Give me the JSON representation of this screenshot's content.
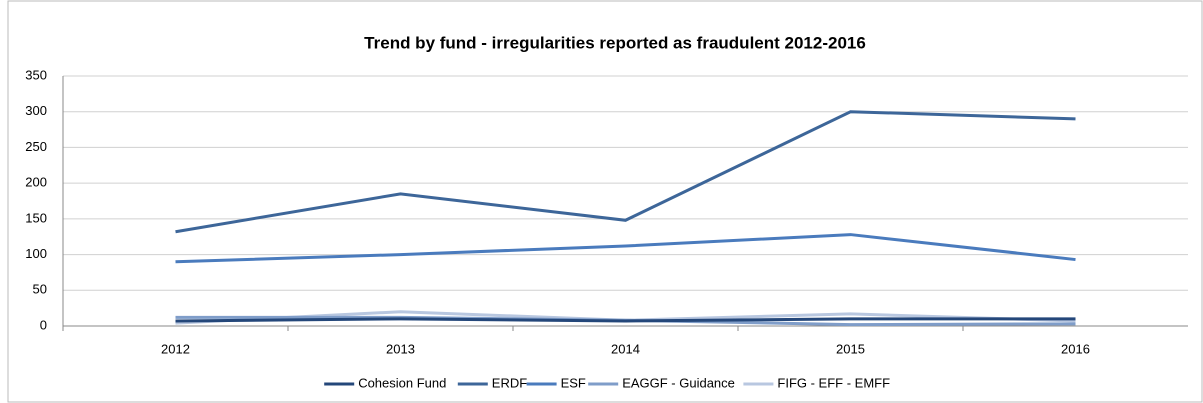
{
  "chart_data": {
    "type": "line",
    "title": "Trend by fund - irregularities reported as fraudulent 2012-2016",
    "categories": [
      "2012",
      "2013",
      "2014",
      "2015",
      "2016"
    ],
    "series": [
      {
        "name": "Cohesion Fund",
        "color": "#24477a",
        "values": [
          7,
          10,
          7,
          10,
          10
        ]
      },
      {
        "name": "ERDF",
        "color": "#3d6699",
        "values": [
          132,
          185,
          148,
          300,
          290
        ]
      },
      {
        "name": "ESF",
        "color": "#4a7bbd",
        "values": [
          90,
          100,
          112,
          128,
          93
        ]
      },
      {
        "name": "EAGGF - Guidance",
        "color": "#7f9dc9",
        "values": [
          12,
          12,
          8,
          2,
          3
        ]
      },
      {
        "name": "FIFG - EFF - EMFF",
        "color": "#b8c7e0",
        "values": [
          4,
          20,
          8,
          17,
          7
        ]
      }
    ],
    "ylim": [
      0,
      350
    ],
    "yticks": [
      0,
      50,
      100,
      150,
      200,
      250,
      300,
      350
    ],
    "grid": true
  }
}
